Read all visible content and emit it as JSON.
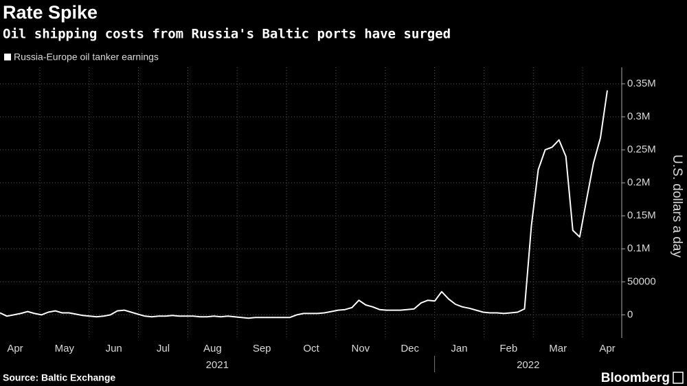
{
  "chart_data": {
    "type": "line",
    "title": "Rate Spike",
    "subtitle": "Oil shipping costs from Russia's Baltic ports have surged",
    "y_axis_label": "U.S. dollars a day",
    "source": "Source: Baltic Exchange",
    "brand": "Bloomberg",
    "month_labels": [
      "Apr",
      "May",
      "Jun",
      "Jul",
      "Aug",
      "Sep",
      "Oct",
      "Nov",
      "Dec",
      "Jan",
      "Feb",
      "Mar",
      "Apr"
    ],
    "year_labels": [
      "2021",
      "2022"
    ],
    "series": [
      {
        "name": "Russia-Europe oil tanker earnings",
        "color": "#ffffff",
        "values": [
          3000,
          -2000,
          0,
          2000,
          5000,
          2000,
          0,
          4000,
          6000,
          3000,
          3000,
          1000,
          -1000,
          -2000,
          -3000,
          -2000,
          0,
          6000,
          7000,
          4000,
          1000,
          -2000,
          -3000,
          -2000,
          -2000,
          -1000,
          -2000,
          -2000,
          -2000,
          -3000,
          -3000,
          -2000,
          -3000,
          -2000,
          -3000,
          -4000,
          -5000,
          -4000,
          -4000,
          -4000,
          -4000,
          -4000,
          -4000,
          0,
          2000,
          2000,
          2000,
          3000,
          5000,
          7000,
          8000,
          11000,
          22000,
          15000,
          12000,
          8000,
          7000,
          7000,
          7000,
          8000,
          9000,
          18000,
          22000,
          21000,
          35000,
          24000,
          16000,
          12000,
          10000,
          7000,
          4000,
          3000,
          3000,
          2000,
          3000,
          4000,
          9000,
          135000,
          220000,
          250000,
          254000,
          265000,
          240000,
          128000,
          118000,
          175000,
          230000,
          268000,
          340000
        ]
      }
    ],
    "ylim": [
      -35000,
      375000
    ],
    "yticks": [
      0,
      50000,
      {
        "value": 100000,
        "label": "0.1M"
      },
      {
        "value": 150000,
        "label": "0.15M"
      },
      {
        "value": 200000,
        "label": "0.2M"
      },
      {
        "value": 250000,
        "label": "0.25M"
      },
      {
        "value": 300000,
        "label": "0.3M"
      },
      {
        "value": 350000,
        "label": "0.35M"
      }
    ],
    "grid": true
  }
}
